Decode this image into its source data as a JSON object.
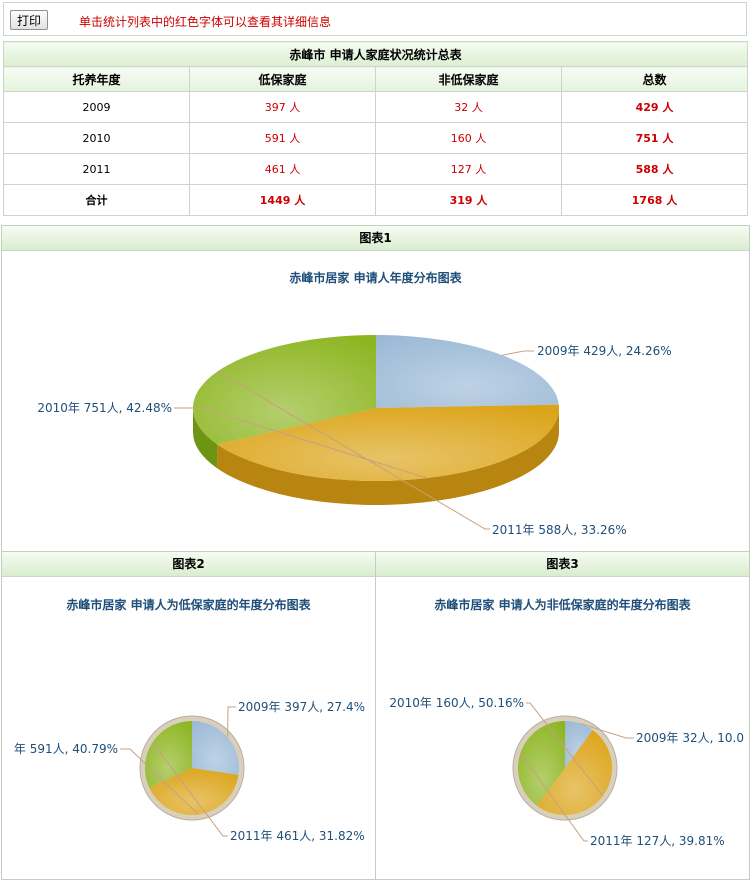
{
  "toolbar": {
    "print_label": "打印",
    "hint": "单击统计列表中的红色字体可以查看其详细信息"
  },
  "summary": {
    "title": "赤峰市 申请人家庭状况统计总表",
    "headers": [
      "托养年度",
      "低保家庭",
      "非低保家庭",
      "总数"
    ],
    "rows": [
      {
        "year": "2009",
        "dibao": "397 人",
        "fei": "32 人",
        "total": "429 人"
      },
      {
        "year": "2010",
        "dibao": "591 人",
        "fei": "160 人",
        "total": "751 人"
      },
      {
        "year": "2011",
        "dibao": "461 人",
        "fei": "127 人",
        "total": "588 人"
      }
    ],
    "total_row": {
      "label": "合计",
      "dibao": "1449 人",
      "fei": "319 人",
      "total": "1768 人"
    }
  },
  "panels": {
    "chart1": "图表1",
    "chart2": "图表2",
    "chart3": "图表3"
  },
  "colors": {
    "blue": "#9bb9d6",
    "orange": "#dba316",
    "green": "#8cb520",
    "text_red": "#cc0000",
    "title_blue": "#1f4e79"
  },
  "chart_data": [
    {
      "type": "pie",
      "title": "赤峰市居家 申请人年度分布图表",
      "categories": [
        "2009年",
        "2010年",
        "2011年"
      ],
      "values": [
        429,
        751,
        588
      ],
      "labels": [
        "2009年 429人, 24.26%",
        "2010年 751人, 42.48%",
        "2011年 588人, 33.26%"
      ]
    },
    {
      "type": "pie",
      "title": "赤峰市居家 申请人为低保家庭的年度分布图表",
      "categories": [
        "2009年",
        "2010年",
        "2011年"
      ],
      "values": [
        397,
        591,
        461
      ],
      "labels": [
        "2009年 397人, 27.4%",
        "年 591人, 40.79%",
        "2011年 461人, 31.82%"
      ]
    },
    {
      "type": "pie",
      "title": "赤峰市居家 申请人为非低保家庭的年度分布图表",
      "categories": [
        "2009年",
        "2010年",
        "2011年"
      ],
      "values": [
        32,
        160,
        127
      ],
      "labels": [
        "2009年 32人, 10.0",
        "2010年 160人, 50.16%",
        "2011年 127人, 39.81%"
      ]
    }
  ]
}
